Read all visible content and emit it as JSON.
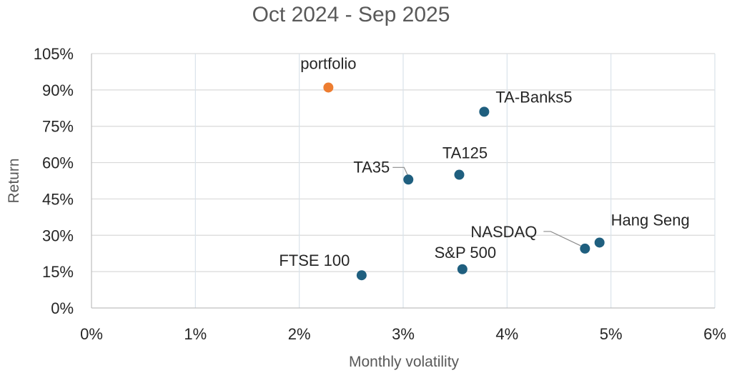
{
  "chart_data": {
    "type": "scatter",
    "title": "Oct 2024 - Sep 2025",
    "xlabel": "Monthly volatility",
    "ylabel": "Return",
    "xlim": [
      0,
      0.06
    ],
    "ylim": [
      0,
      1.05
    ],
    "x_ticks": [
      "0%",
      "1%",
      "2%",
      "3%",
      "4%",
      "5%",
      "6%"
    ],
    "y_ticks": [
      "0%",
      "15%",
      "30%",
      "45%",
      "60%",
      "75%",
      "90%",
      "105%"
    ],
    "grid": true,
    "points": [
      {
        "label": "portfolio",
        "x": 0.0228,
        "y": 0.91,
        "color": "#ed7d31"
      },
      {
        "label": "TA-Banks5",
        "x": 0.0378,
        "y": 0.81,
        "color": "#1f5f7f"
      },
      {
        "label": "TA35",
        "x": 0.0305,
        "y": 0.53,
        "color": "#1f5f7f"
      },
      {
        "label": "TA125",
        "x": 0.0354,
        "y": 0.55,
        "color": "#1f5f7f"
      },
      {
        "label": "Hang Seng",
        "x": 0.0489,
        "y": 0.27,
        "color": "#1f5f7f"
      },
      {
        "label": "NASDAQ",
        "x": 0.0475,
        "y": 0.245,
        "color": "#1f5f7f"
      },
      {
        "label": "S&P 500",
        "x": 0.0357,
        "y": 0.16,
        "color": "#1f5f7f"
      },
      {
        "label": "FTSE 100",
        "x": 0.026,
        "y": 0.135,
        "color": "#1f5f7f"
      }
    ]
  }
}
